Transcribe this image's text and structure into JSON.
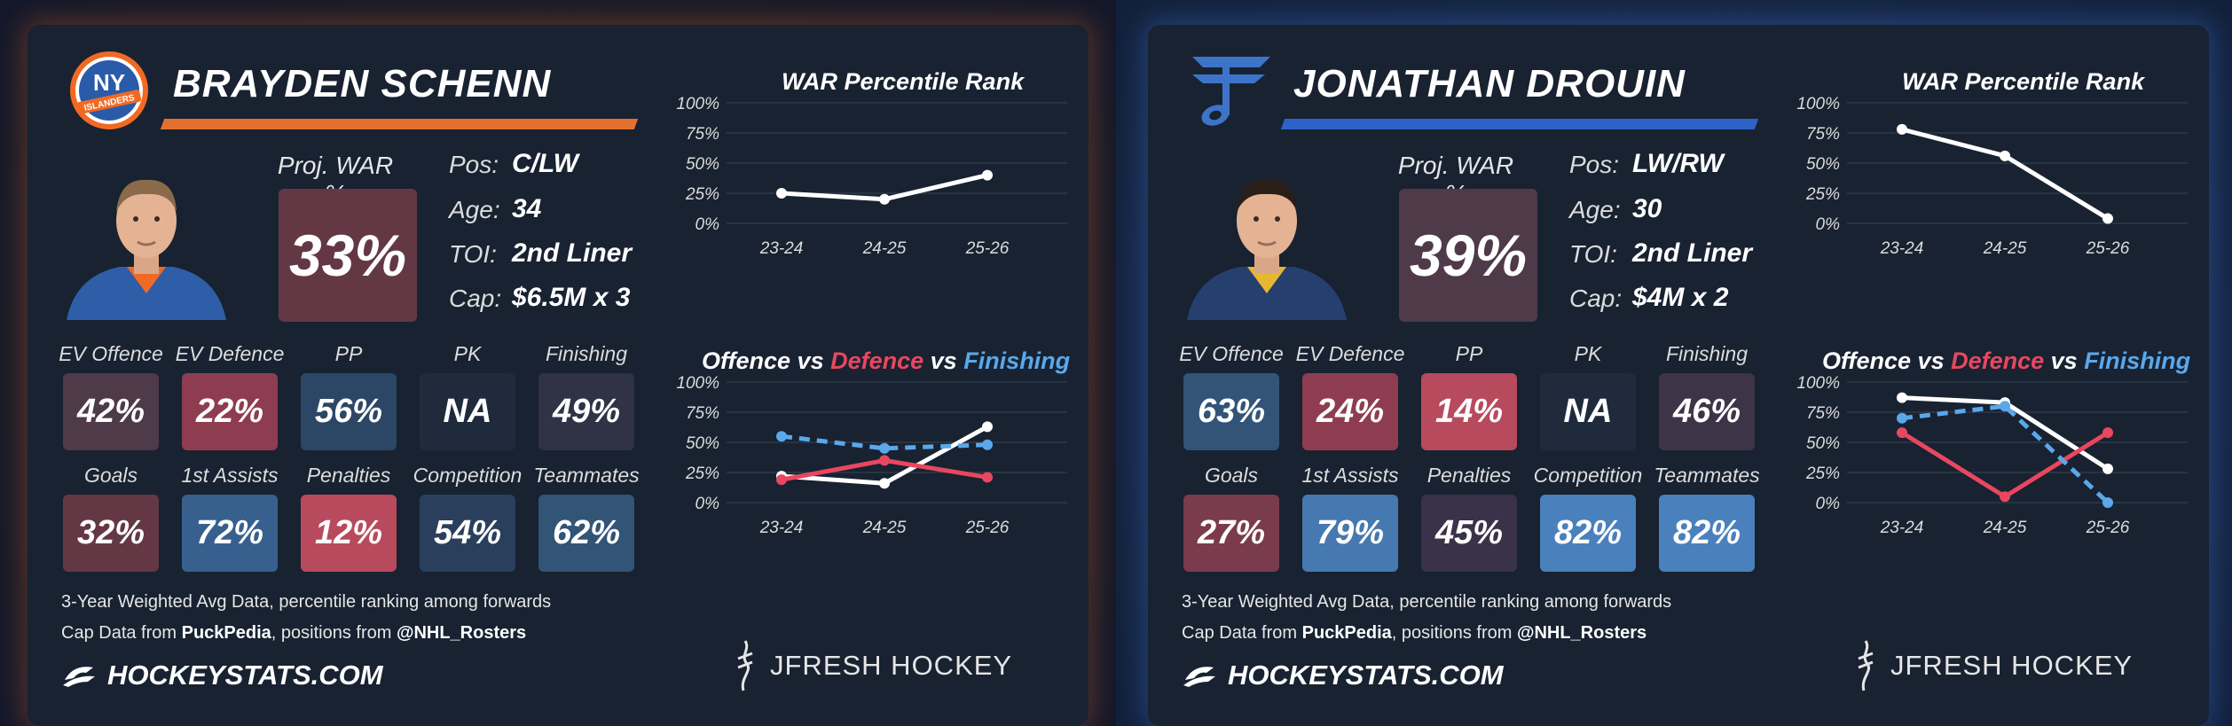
{
  "cards": [
    {
      "player_name": "BRAYDEN SCHENN",
      "team_logo": "islanders-logo",
      "team_logo_text": "ISLANDERS",
      "accent_color": "#e3702f",
      "proj_war_label": "Proj. WAR %",
      "proj_war_value": "33%",
      "proj_war_color": "#633844",
      "info": [
        {
          "label": "Pos:",
          "value": "C/LW"
        },
        {
          "label": "Age:",
          "value": "34"
        },
        {
          "label": "TOI:",
          "value": "2nd Liner"
        },
        {
          "label": "Cap:",
          "value": "$6.5M x 3"
        }
      ],
      "metrics_row1": [
        {
          "label": "EV Offence",
          "value": "42%",
          "color": "#4e3a49"
        },
        {
          "label": "EV Defence",
          "value": "22%",
          "color": "#8e3d51"
        },
        {
          "label": "PP",
          "value": "56%",
          "color": "#2c4766"
        },
        {
          "label": "PK",
          "value": "NA",
          "color": "#1f2b3c"
        },
        {
          "label": "Finishing",
          "value": "49%",
          "color": "#303246"
        }
      ],
      "metrics_row2": [
        {
          "label": "Goals",
          "value": "32%",
          "color": "#633844"
        },
        {
          "label": "1st Assists",
          "value": "72%",
          "color": "#38608e"
        },
        {
          "label": "Penalties",
          "value": "12%",
          "color": "#b84a5d"
        },
        {
          "label": "Competition",
          "value": "54%",
          "color": "#2a3f5c"
        },
        {
          "label": "Teammates",
          "value": "62%",
          "color": "#315477"
        }
      ],
      "footnote1": "3-Year Weighted Avg Data, percentile ranking among forwards",
      "footnote2_a": "Cap Data from ",
      "footnote2_b": "PuckPedia",
      "footnote2_c": ", positions from ",
      "footnote2_d": "@NHL_Rosters",
      "site": "HOCKEYSTATS.COM",
      "brand": "JFRESH HOCKEY"
    },
    {
      "player_name": "JONATHAN DROUIN",
      "team_logo": "blues-note-logo",
      "team_logo_text": "",
      "accent_color": "#2f62c8",
      "proj_war_label": "Proj. WAR %",
      "proj_war_value": "39%",
      "proj_war_color": "#4e3a49",
      "info": [
        {
          "label": "Pos:",
          "value": "LW/RW"
        },
        {
          "label": "Age:",
          "value": "30"
        },
        {
          "label": "TOI:",
          "value": "2nd Liner"
        },
        {
          "label": "Cap:",
          "value": "$4M x 2"
        }
      ],
      "metrics_row1": [
        {
          "label": "EV Offence",
          "value": "63%",
          "color": "#315477"
        },
        {
          "label": "EV Defence",
          "value": "24%",
          "color": "#8e3d51"
        },
        {
          "label": "PP",
          "value": "14%",
          "color": "#b84a5d"
        },
        {
          "label": "PK",
          "value": "NA",
          "color": "#1f2b3c"
        },
        {
          "label": "Finishing",
          "value": "46%",
          "color": "#3d3447"
        }
      ],
      "metrics_row2": [
        {
          "label": "Goals",
          "value": "27%",
          "color": "#7a3b4c"
        },
        {
          "label": "1st Assists",
          "value": "79%",
          "color": "#4579b0"
        },
        {
          "label": "Penalties",
          "value": "45%",
          "color": "#393248"
        },
        {
          "label": "Competition",
          "value": "82%",
          "color": "#4a80bc"
        },
        {
          "label": "Teammates",
          "value": "82%",
          "color": "#4a80bc"
        }
      ],
      "footnote1": "3-Year Weighted Avg Data, percentile ranking among forwards",
      "footnote2_a": "Cap Data from ",
      "footnote2_b": "PuckPedia",
      "footnote2_c": ", positions from ",
      "footnote2_d": "@NHL_Rosters",
      "site": "HOCKEYSTATS.COM",
      "brand": "JFRESH HOCKEY"
    }
  ],
  "chart_data": [
    {
      "type": "line",
      "card": 0,
      "title": "WAR Percentile Rank",
      "categories": [
        "23-24",
        "24-25",
        "25-26"
      ],
      "ylim": [
        0,
        100
      ],
      "yticks": [
        "0%",
        "25%",
        "50%",
        "75%",
        "100%"
      ],
      "series": [
        {
          "name": "WAR",
          "values": [
            25,
            20,
            40
          ],
          "color": "#ffffff",
          "dashed": false
        }
      ]
    },
    {
      "type": "line",
      "card": 0,
      "title_parts": [
        {
          "text": "Offence",
          "color": "#ffffff"
        },
        {
          "text": " vs ",
          "color": "#ffffff"
        },
        {
          "text": "Defence",
          "color": "#e8475f"
        },
        {
          "text": " vs ",
          "color": "#ffffff"
        },
        {
          "text": "Finishing",
          "color": "#5aa8ea"
        }
      ],
      "categories": [
        "23-24",
        "24-25",
        "25-26"
      ],
      "ylim": [
        0,
        100
      ],
      "yticks": [
        "0%",
        "25%",
        "50%",
        "75%",
        "100%"
      ],
      "series": [
        {
          "name": "Offence",
          "values": [
            22,
            16,
            63
          ],
          "color": "#ffffff",
          "dashed": false
        },
        {
          "name": "Defence",
          "values": [
            19,
            35,
            21
          ],
          "color": "#e8475f",
          "dashed": false
        },
        {
          "name": "Finishing",
          "values": [
            55,
            45,
            48
          ],
          "color": "#5aa8ea",
          "dashed": true
        }
      ]
    },
    {
      "type": "line",
      "card": 1,
      "title": "WAR Percentile Rank",
      "categories": [
        "23-24",
        "24-25",
        "25-26"
      ],
      "ylim": [
        0,
        100
      ],
      "yticks": [
        "0%",
        "25%",
        "50%",
        "75%",
        "100%"
      ],
      "series": [
        {
          "name": "WAR",
          "values": [
            78,
            56,
            4
          ],
          "color": "#ffffff",
          "dashed": false
        }
      ]
    },
    {
      "type": "line",
      "card": 1,
      "title_parts": [
        {
          "text": "Offence",
          "color": "#ffffff"
        },
        {
          "text": " vs ",
          "color": "#ffffff"
        },
        {
          "text": "Defence",
          "color": "#e8475f"
        },
        {
          "text": " vs ",
          "color": "#ffffff"
        },
        {
          "text": "Finishing",
          "color": "#5aa8ea"
        }
      ],
      "categories": [
        "23-24",
        "24-25",
        "25-26"
      ],
      "ylim": [
        0,
        100
      ],
      "yticks": [
        "0%",
        "25%",
        "50%",
        "75%",
        "100%"
      ],
      "series": [
        {
          "name": "Offence",
          "values": [
            87,
            83,
            28
          ],
          "color": "#ffffff",
          "dashed": false
        },
        {
          "name": "Defence",
          "values": [
            58,
            5,
            58
          ],
          "color": "#e8475f",
          "dashed": false
        },
        {
          "name": "Finishing",
          "values": [
            70,
            80,
            0
          ],
          "color": "#5aa8ea",
          "dashed": true
        }
      ]
    }
  ]
}
